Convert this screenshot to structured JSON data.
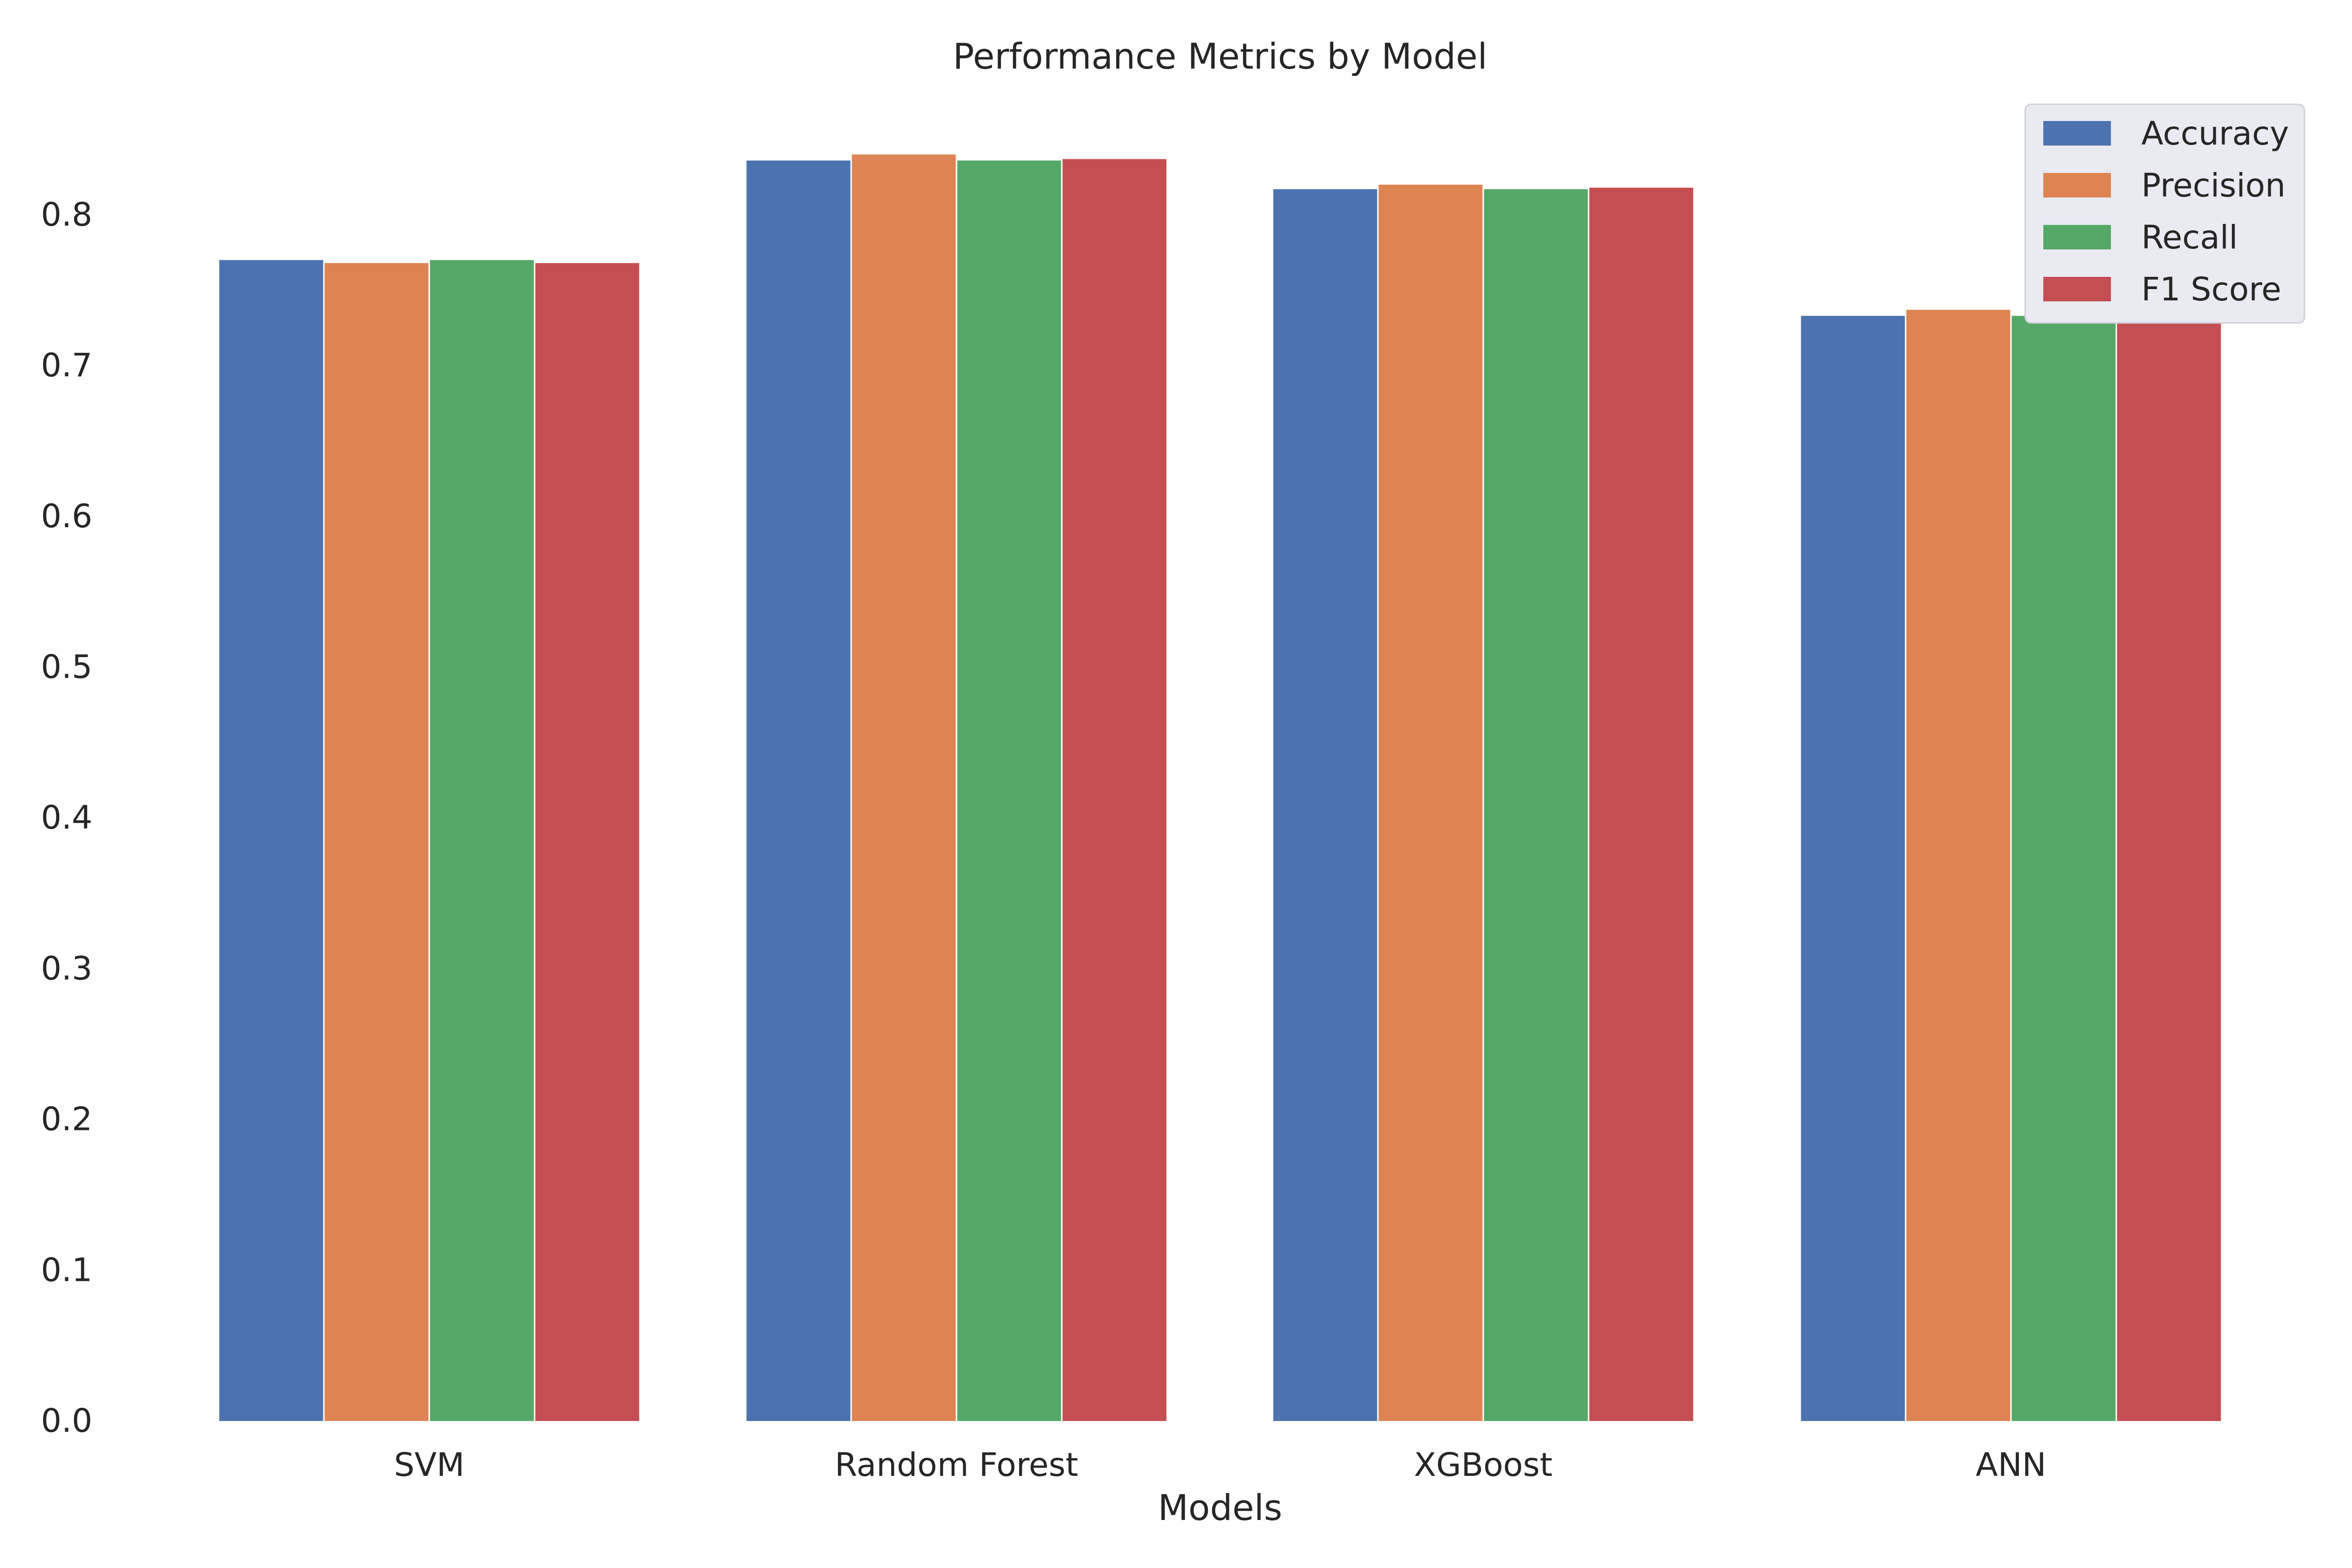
{
  "chart_data": {
    "type": "bar",
    "title": "Performance Metrics by Model",
    "xlabel": "Models",
    "ylabel": "",
    "categories": [
      "SVM",
      "Random Forest",
      "XGBoost",
      "ANN"
    ],
    "series": [
      {
        "name": "Accuracy",
        "color": "#4C72B0",
        "values": [
          0.77,
          0.836,
          0.817,
          0.733
        ]
      },
      {
        "name": "Precision",
        "color": "#DD8452",
        "values": [
          0.768,
          0.84,
          0.82,
          0.737
        ]
      },
      {
        "name": "Recall",
        "color": "#55A868",
        "values": [
          0.77,
          0.836,
          0.817,
          0.733
        ]
      },
      {
        "name": "F1 Score",
        "color": "#C44E52",
        "values": [
          0.768,
          0.837,
          0.818,
          0.733
        ]
      }
    ],
    "ylim": [
      0,
      0.8
    ],
    "yticks": [
      "0.0",
      "0.1",
      "0.2",
      "0.3",
      "0.4",
      "0.5",
      "0.6",
      "0.7",
      "0.8"
    ],
    "grid": false,
    "legend_position": "top-right",
    "legend_background": "#EAEAF2"
  }
}
